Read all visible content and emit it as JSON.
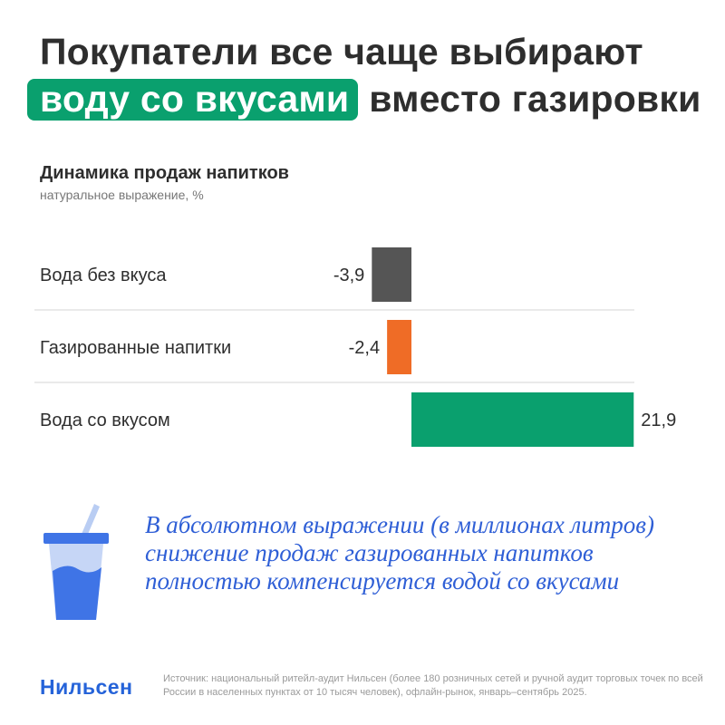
{
  "header": {
    "title_line1": "Покупатели все чаще выбирают",
    "title_highlight": "воду со вкусами",
    "title_rest": "вместо газировки"
  },
  "chart_data": {
    "type": "bar",
    "orientation": "horizontal",
    "title": "Динамика продаж напитков",
    "subtitle": "натуральное выражение, %",
    "categories": [
      "Вода без вкуса",
      "Газированные напитки",
      "Вода со вкусом"
    ],
    "values": [
      -3.9,
      -2.4,
      21.9
    ],
    "value_labels": [
      "-3,9",
      "-2,4",
      "21,9"
    ],
    "colors": [
      "#555555",
      "#ef6c26",
      "#0aa06e"
    ],
    "grid": false
  },
  "callout": {
    "icon": "cup-with-straw-icon",
    "text": "В абсолютном выражении (в миллионах литров) снижение продаж газированных напитков полностью компенсируется водой со вкусами"
  },
  "footer": {
    "brand": "Нильсен",
    "source": "Источник: национальный ритейл-аудит Нильсен (более 180 розничных сетей и ручной аудит торговых точек по всей России в населенных пунктах от 10 тысяч человек), офлайн-рынок, январь–сентябрь 2025."
  }
}
